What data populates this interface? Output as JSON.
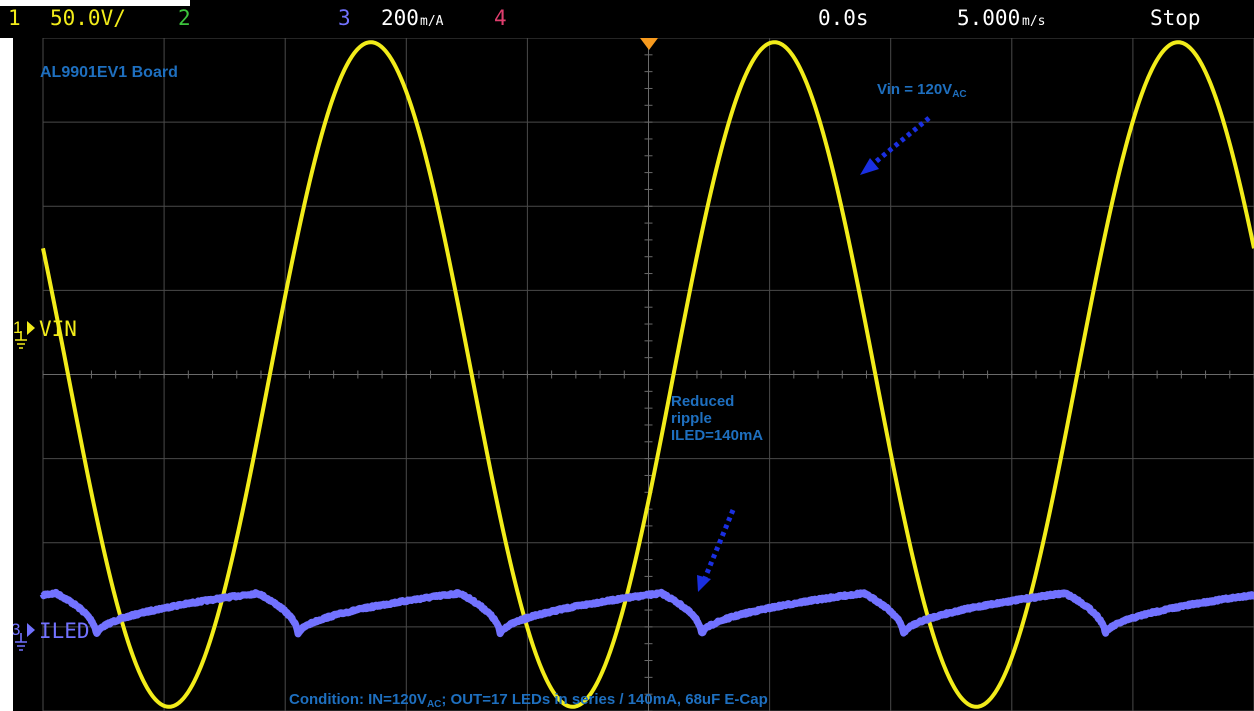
{
  "topbar": {
    "ch1_num": "1",
    "ch1_scale": "50.0V/",
    "ch2_num": "2",
    "ch3_num": "3",
    "ch3_scale": "200",
    "ch3_scale_unit": "m/A",
    "ch4_num": "4",
    "time_offset": "0.0s",
    "timebase": "5.000",
    "timebase_unit": "m/s",
    "run_state": "Stop"
  },
  "colors": {
    "ch1": "#f2ec1a",
    "ch2": "#3cc43c",
    "ch3": "#7272ff",
    "ch4": "#e03e6e",
    "annotation": "#1e6fbf",
    "grid": "#4a4a4a",
    "trigger": "#f79a1e"
  },
  "annotations": {
    "board": "AL9901EV1 Board",
    "vin_prefix": "Vin = 120V",
    "vin_sub": "AC",
    "ripple_line1": "Reduced",
    "ripple_line2": "ripple",
    "ripple_line3": "ILED=140mA",
    "condition_a": "Condition: IN=120V",
    "condition_sub": "AC",
    "condition_b": "; OUT=17 LEDs in series / 140mA, 68uF  E-Cap"
  },
  "chart_data": {
    "type": "line",
    "title": "",
    "xlabel": "",
    "ylabel": "",
    "grid": true,
    "x_unit": "ms",
    "x_range": [
      -25,
      25
    ],
    "series": [
      {
        "name": "VIN",
        "channel": 1,
        "scale_per_div": "50.0V/",
        "y_unit": "V",
        "waveform": "sine",
        "frequency_hz": 60,
        "amplitude_divs": 3.95,
        "offset_divs": 0,
        "peak_time_ms": 5.2
      },
      {
        "name": "ILED",
        "channel": 3,
        "scale_per_div": "200mA/",
        "y_unit": "A",
        "waveform": "ripple",
        "frequency_hz": 120,
        "mean_divs": -2.85,
        "peak_to_peak_divs": 0.5,
        "mean_value": "140mA"
      }
    ],
    "divisions": {
      "x": 10,
      "y": 8
    }
  }
}
